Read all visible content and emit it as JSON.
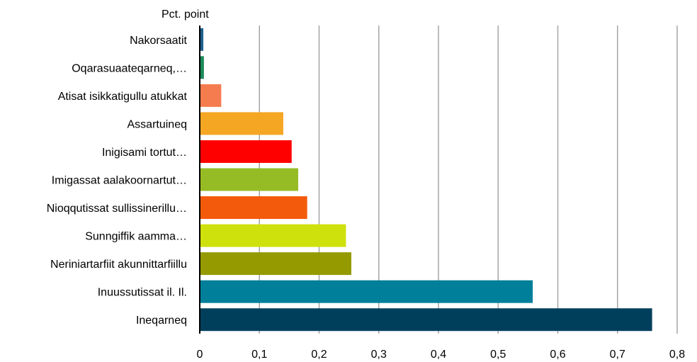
{
  "chart_data": {
    "type": "bar",
    "orientation": "horizontal",
    "ylabel_top": "Pct. point",
    "xlim": [
      0,
      0.8
    ],
    "xticks": [
      "0",
      "0,1",
      "0,2",
      "0,3",
      "0,4",
      "0,5",
      "0,6",
      "0,7",
      "0,8"
    ],
    "grid": "vertical",
    "categories": [
      "Nakorsaatit",
      "Oqarasuaateqarneq,…",
      "Atisat isikkatigullu atukkat",
      "Assartuineq",
      "Inigisami tortut…",
      "Imigassat aalakoornartut…",
      "Nioqqutissat sullissinerillu…",
      "Sunngiffik aamma…",
      "Neriniartarfiit akunnittarfiillu",
      "Inuussutissat il. Il.",
      "Ineqarneq"
    ],
    "values": [
      0.006,
      0.007,
      0.036,
      0.14,
      0.154,
      0.165,
      0.18,
      0.245,
      0.254,
      0.558,
      0.758
    ],
    "colors": [
      "#1f5f8b",
      "#1e8a5a",
      "#f47c4e",
      "#f5a623",
      "#ff0000",
      "#96bc25",
      "#f45a0b",
      "#cfe10c",
      "#959a00",
      "#007f9a",
      "#003f5c"
    ]
  }
}
